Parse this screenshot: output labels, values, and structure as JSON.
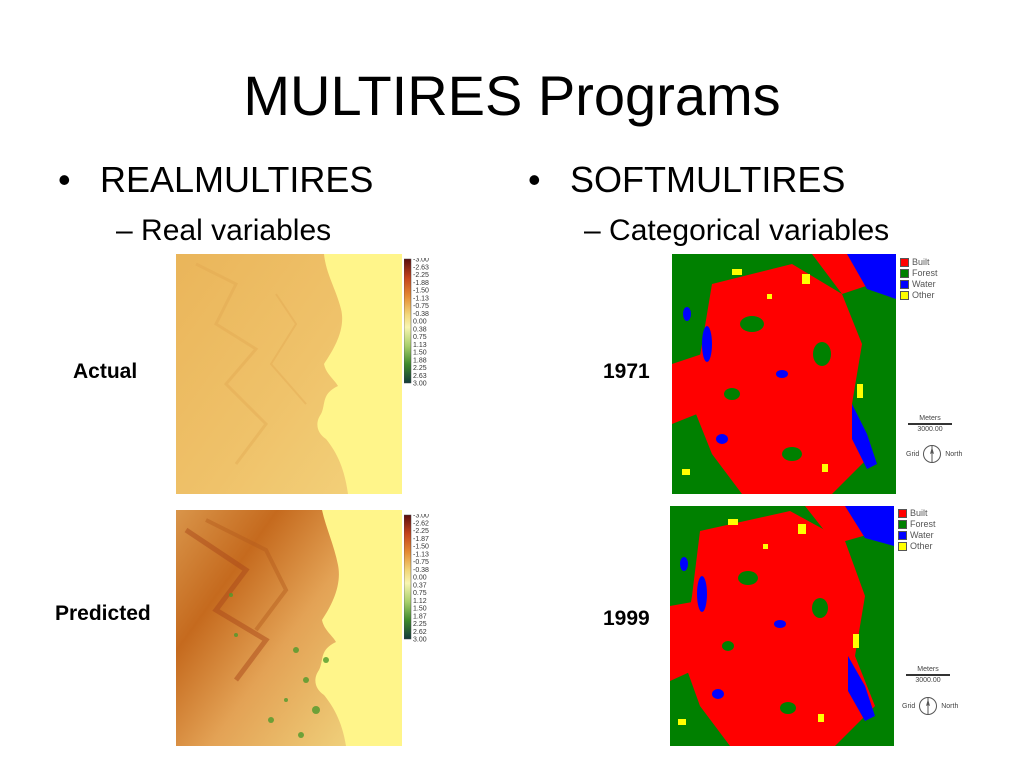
{
  "slide": {
    "title": "MULTIRES Programs",
    "left": {
      "bullet": "REALMULTIRES",
      "sub": "Real variables",
      "rows": [
        {
          "label": "Actual",
          "scale": [
            "-3.00",
            "-2.63",
            "-2.25",
            "-1.88",
            "-1.50",
            "-1.13",
            "-0.75",
            "-0.38",
            "0.00",
            "0.38",
            "0.75",
            "1.13",
            "1.50",
            "1.88",
            "2.25",
            "2.63",
            "3.00"
          ]
        },
        {
          "label": "Predicted",
          "scale": [
            "-3.00",
            "-2.62",
            "-2.25",
            "-1.87",
            "-1.50",
            "-1.13",
            "-0.75",
            "-0.38",
            "0.00",
            "0.37",
            "0.75",
            "1.12",
            "1.50",
            "1.87",
            "2.25",
            "2.62",
            "3.00"
          ]
        }
      ]
    },
    "right": {
      "bullet": "SOFTMULTIRES",
      "sub": "Categorical variables",
      "rows": [
        {
          "label": "1971"
        },
        {
          "label": "1999"
        }
      ],
      "legend": [
        {
          "label": "Built",
          "color": "#ff0000"
        },
        {
          "label": "Forest",
          "color": "#008000"
        },
        {
          "label": "Water",
          "color": "#0000ff"
        },
        {
          "label": "Other",
          "color": "#ffff00"
        }
      ],
      "scalebar": {
        "unit": "Meters",
        "value": "3000.00"
      },
      "compass": {
        "left": "Grid",
        "right": "North"
      }
    },
    "colors": {
      "map_yellow": "#fff58a",
      "map_orange": "#e9a74e",
      "map_dark_orange": "#c56a1e",
      "map_green": "#4f9a2c",
      "built": "#ff0000",
      "forest": "#008000",
      "water": "#0000ff",
      "other": "#ffff00"
    }
  }
}
